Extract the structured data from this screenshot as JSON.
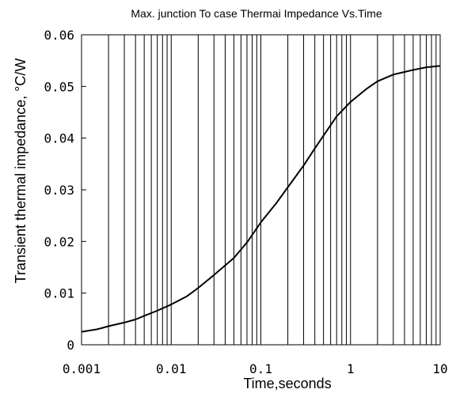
{
  "chart_data": {
    "type": "line",
    "title": "Max. junction To case Thermai Impedance Vs.Time",
    "xlabel": "Time,seconds",
    "ylabel": "Transient thermal impedance, °C/W",
    "x_scale": "log",
    "xlim": [
      0.001,
      10
    ],
    "ylim": [
      0,
      0.06
    ],
    "grid": "vertical",
    "x_tick_labels": [
      "0.001",
      "0.01",
      "0.1",
      "1",
      "10"
    ],
    "y_tick_labels": [
      "0",
      "0.01",
      "0.02",
      "0.03",
      "0.04",
      "0.05",
      "0.06"
    ],
    "series": [
      {
        "x": [
          0.001,
          0.0015,
          0.002,
          0.003,
          0.004,
          0.005,
          0.007,
          0.01,
          0.015,
          0.02,
          0.03,
          0.05,
          0.07,
          0.1,
          0.15,
          0.2,
          0.3,
          0.4,
          0.5,
          0.7,
          1,
          1.5,
          2,
          3,
          5,
          7,
          10
        ],
        "y": [
          0.0025,
          0.003,
          0.0036,
          0.0043,
          0.0049,
          0.0056,
          0.0066,
          0.0078,
          0.0094,
          0.011,
          0.0135,
          0.0168,
          0.0198,
          0.0237,
          0.0275,
          0.0305,
          0.0347,
          0.038,
          0.0405,
          0.0442,
          0.047,
          0.0495,
          0.051,
          0.0523,
          0.0532,
          0.0537,
          0.054
        ],
        "color": "#000000"
      }
    ]
  }
}
